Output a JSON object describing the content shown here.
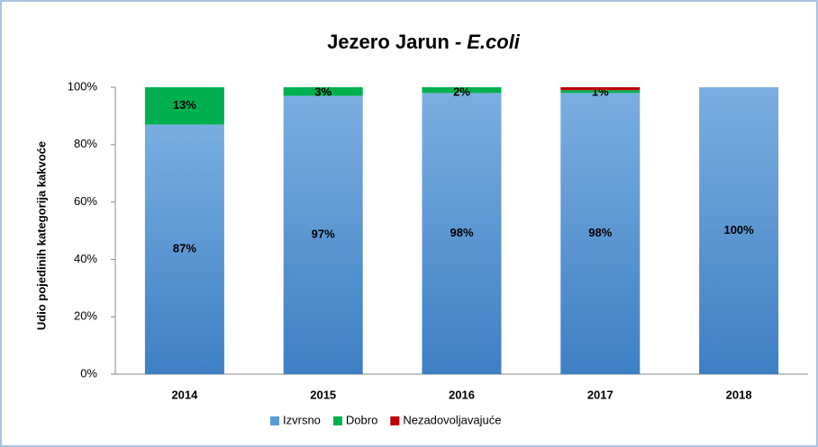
{
  "chart_data": {
    "type": "stacked_bar",
    "title": {
      "text": "Jezero Jarun -",
      "emphasis": "E.coli"
    },
    "y_label": "Udio pojedinih kategorija kakvoće",
    "categories": [
      "2014",
      "2015",
      "2016",
      "2017",
      "2018"
    ],
    "series": [
      {
        "name": "Izvrsno",
        "color": "#5b9bd5",
        "values": [
          87,
          97,
          98,
          98,
          100
        ],
        "value_labels": [
          "87%",
          "97%",
          "98%",
          "98%",
          "100%"
        ]
      },
      {
        "name": "Dobro",
        "color": "#00b050",
        "values": [
          13,
          3,
          2,
          1,
          0
        ],
        "value_labels": [
          "13%",
          "3%",
          "2%",
          "1%",
          null
        ]
      },
      {
        "name": "Nezadovoljavajuće",
        "color": "#c00000",
        "values": [
          0,
          0,
          0,
          1,
          0
        ],
        "value_labels": [
          null,
          null,
          null,
          null,
          null
        ]
      }
    ],
    "ylim": [
      0,
      100
    ],
    "yticks": [
      {
        "value": 0,
        "label": "0%"
      },
      {
        "value": 20,
        "label": "20%"
      },
      {
        "value": 40,
        "label": "40%"
      },
      {
        "value": 60,
        "label": "60%"
      },
      {
        "value": 80,
        "label": "80%"
      },
      {
        "value": 100,
        "label": "100%"
      }
    ],
    "grid": false,
    "legend": "bottom"
  }
}
